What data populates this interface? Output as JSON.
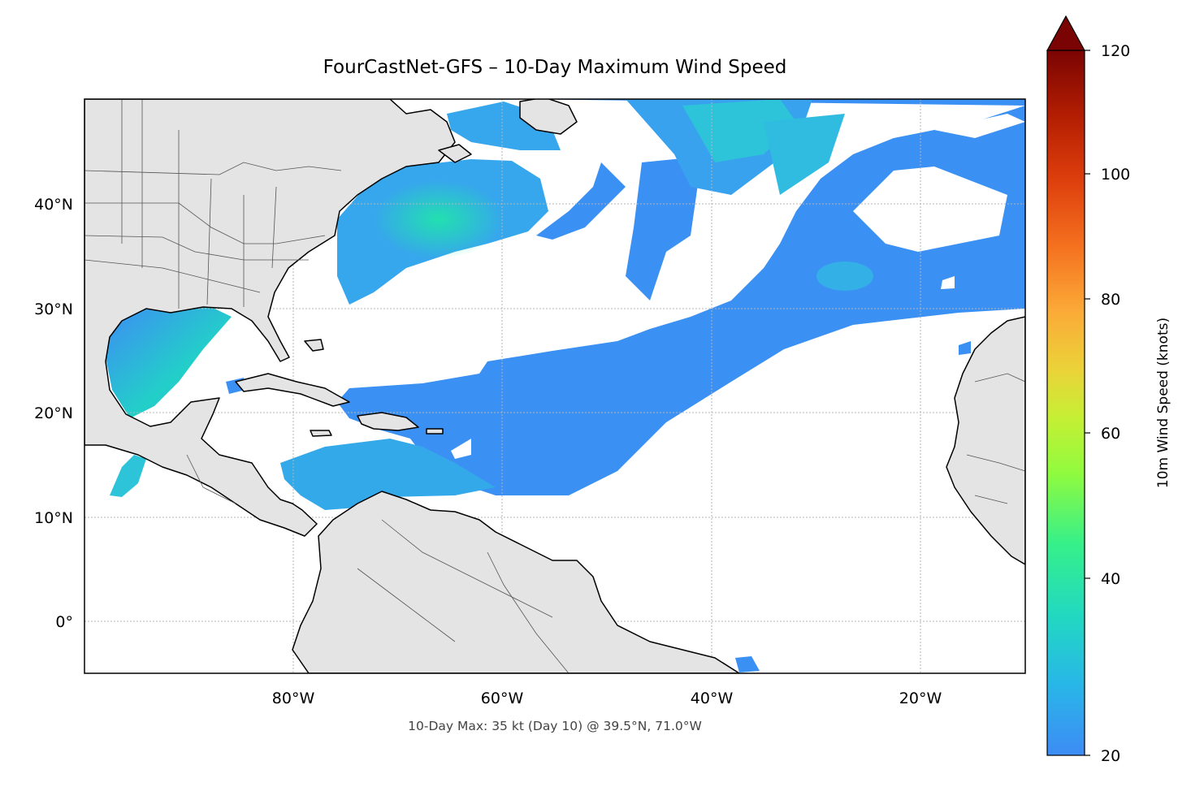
{
  "title": "FourCastNet-GFS – 10-Day Maximum Wind Speed",
  "caption": "10-Day Max: 35 kt (Day 10) @ 39.5°N, 71.0°W",
  "map": {
    "lon_range": [
      -100,
      -10
    ],
    "lat_range": [
      -5,
      50
    ],
    "lat_ticks": [
      "40°N",
      "30°N",
      "20°N",
      "10°N",
      "0°"
    ],
    "lon_ticks": [
      "80°W",
      "60°W",
      "40°W",
      "20°W"
    ],
    "land_color": "#e4e4e4",
    "gridlines": true
  },
  "colorbar": {
    "label": "10m Wind Speed (knots)",
    "ticks": [
      "20",
      "40",
      "60",
      "80",
      "100",
      "120"
    ],
    "min": 20,
    "max": 120,
    "extend": "max",
    "colormap": "turbo"
  }
}
